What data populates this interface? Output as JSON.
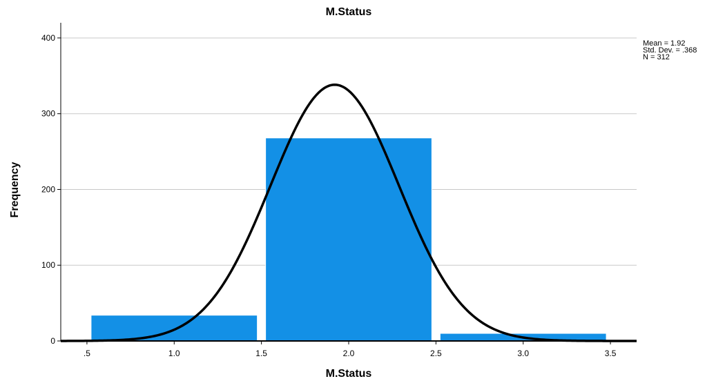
{
  "chart_data": {
    "type": "bar",
    "title": "M.Status",
    "xlabel": "M.Status",
    "ylabel": "Frequency",
    "bins": [
      {
        "start": 0.5,
        "end": 1.5,
        "value": 34
      },
      {
        "start": 1.5,
        "end": 2.5,
        "value": 268
      },
      {
        "start": 2.5,
        "end": 3.5,
        "value": 10
      }
    ],
    "xlim": [
      0.35,
      3.65
    ],
    "ylim": [
      0,
      420
    ],
    "x_ticks": [
      ".5",
      "1.0",
      "1.5",
      "2.0",
      "2.5",
      "3.0",
      "3.5"
    ],
    "x_tick_values": [
      0.5,
      1.0,
      1.5,
      2.0,
      2.5,
      3.0,
      3.5
    ],
    "y_ticks": [
      "0",
      "100",
      "200",
      "300",
      "400"
    ],
    "y_tick_values": [
      0,
      100,
      200,
      300,
      400
    ],
    "grid": true,
    "bar_color": "#1390e6",
    "curve_color": "#000000",
    "normal_curve": {
      "mean": 1.92,
      "sd": 0.368,
      "n": 312,
      "bin_width": 1.0
    },
    "stats": [
      "Mean = 1.92",
      "Std. Dev. = .368",
      "N = 312"
    ],
    "legend_position": "top-right"
  }
}
